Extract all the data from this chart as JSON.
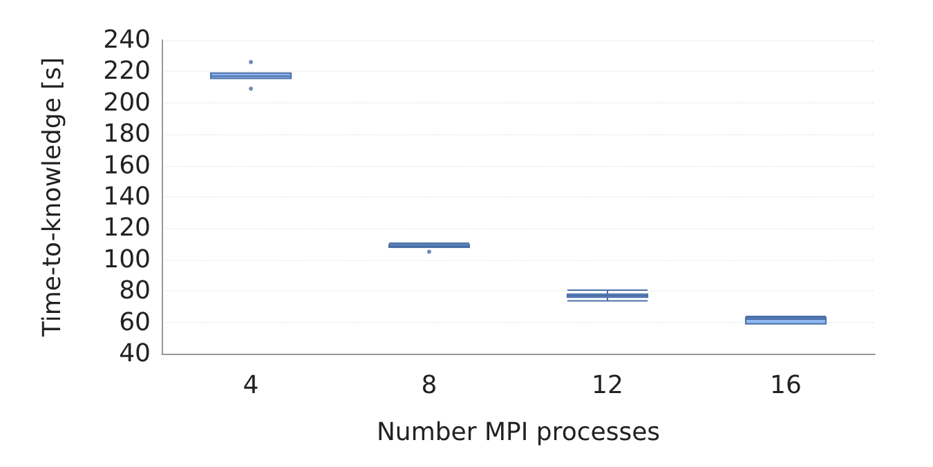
{
  "chart_data": {
    "type": "box",
    "xlabel": "Number MPI processes",
    "ylabel": "Time-to-knowledge [s]",
    "categories": [
      "4",
      "8",
      "12",
      "16"
    ],
    "boxes": [
      {
        "low": 215.5,
        "q1": 215.5,
        "median": 217,
        "q3": 219,
        "high": 219,
        "outliers": [
          209,
          226
        ]
      },
      {
        "low": 107.8,
        "q1": 107.8,
        "median": 108.5,
        "q3": 109.5,
        "high": 110.5,
        "outliers": [
          105
        ]
      },
      {
        "low": 73.7,
        "q1": 76,
        "median": 77,
        "q3": 78,
        "high": 80.5
      },
      {
        "low": 59,
        "q1": 59,
        "median": 62,
        "q3": 63,
        "high": 63.8
      }
    ],
    "color": "#8fb8f0",
    "ylim": [
      40,
      240
    ],
    "yticks": [
      40,
      60,
      80,
      100,
      120,
      140,
      160,
      180,
      200,
      220,
      240
    ],
    "grid": "y"
  }
}
